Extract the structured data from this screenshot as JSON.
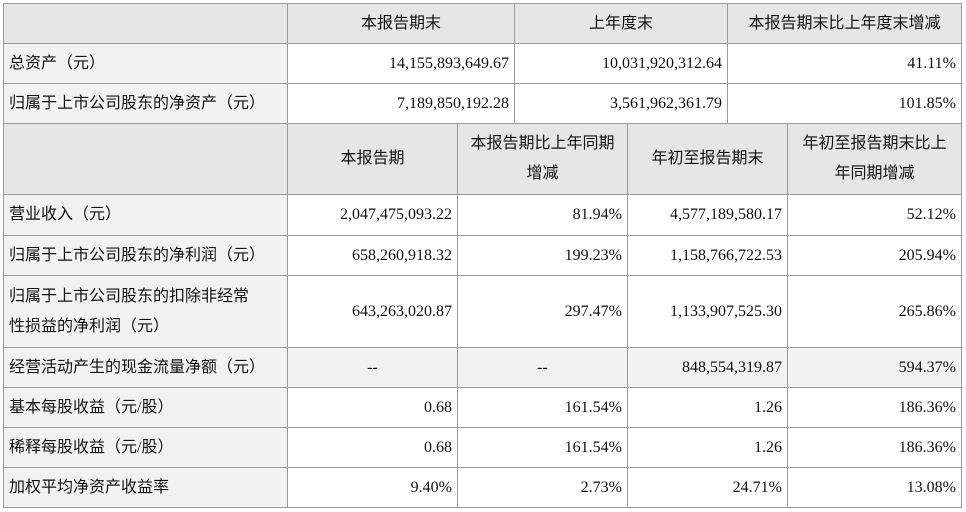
{
  "table1": {
    "header": [
      "本报告期末",
      "上年度末",
      "本报告期末比上年度末增减"
    ],
    "rows": [
      {
        "label": "总资产（元）",
        "cells": [
          "14,155,893,649.67",
          "10,031,920,312.64",
          "41.11%"
        ]
      },
      {
        "label": "归属于上市公司股东的净资产（元）",
        "cells": [
          "7,189,850,192.28",
          "3,561,962,361.79",
          "101.85%"
        ]
      }
    ]
  },
  "table2": {
    "header": [
      "本报告期",
      [
        "本报告期比上年同期",
        "增减"
      ],
      "年初至报告期末",
      [
        "年初至报告期末比上",
        "年同期增减"
      ]
    ],
    "rows": [
      {
        "label": "营业收入（元）",
        "cells": [
          "2,047,475,093.22",
          "81.94%",
          "4,577,189,580.17",
          "52.12%"
        ]
      },
      {
        "label": "归属于上市公司股东的净利润（元）",
        "cells": [
          "658,260,918.32",
          "199.23%",
          "1,158,766,722.53",
          "205.94%"
        ]
      },
      {
        "label": [
          "归属于上市公司股东的扣除非经常",
          "性损益的净利润（元）"
        ],
        "cells": [
          "643,263,020.87",
          "297.47%",
          "1,133,907,525.30",
          "265.86%"
        ]
      },
      {
        "label": "经营活动产生的现金流量净额（元）",
        "cells": [
          "--",
          "--",
          "848,554,319.87",
          "594.37%"
        ]
      },
      {
        "label": "基本每股收益（元/股）",
        "cells": [
          "0.68",
          "161.54%",
          "1.26",
          "186.36%"
        ]
      },
      {
        "label": "稀释每股收益（元/股）",
        "cells": [
          "0.68",
          "161.54%",
          "1.26",
          "186.36%"
        ]
      },
      {
        "label": "加权平均净资产收益率",
        "cells": [
          "9.40%",
          "2.73%",
          "24.71%",
          "13.08%"
        ]
      }
    ]
  }
}
